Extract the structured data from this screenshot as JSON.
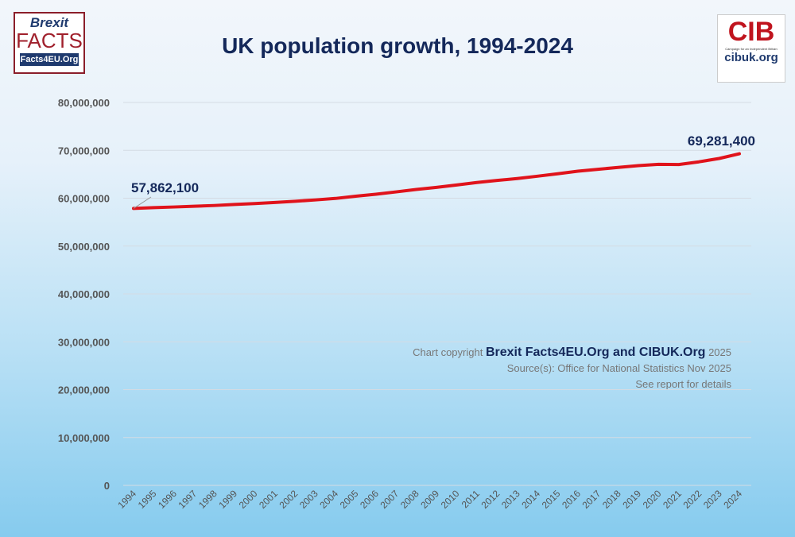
{
  "logos": {
    "left": "Brexit FACTS Facts4EU.Org",
    "right": "CIB Campaign for an Independent Britain cibuk.org"
  },
  "copyright": {
    "prefix": "Chart copyright",
    "brand": "Brexit Facts4EU.Org and CIBUK.Org",
    "year": "2025",
    "source": "Source(s): Office for National Statistics Nov 2025",
    "details": "See report for details"
  },
  "colors": {
    "line": "#e0131b",
    "title": "#14285a"
  },
  "chart_data": {
    "type": "line",
    "title": "UK population growth, 1994-2024",
    "xlabel": "",
    "ylabel": "",
    "ylim": [
      0,
      80000000
    ],
    "yticks": [
      0,
      10000000,
      20000000,
      30000000,
      40000000,
      50000000,
      60000000,
      70000000,
      80000000
    ],
    "ytick_labels": [
      "0",
      "10,000,000",
      "20,000,000",
      "30,000,000",
      "40,000,000",
      "50,000,000",
      "60,000,000",
      "70,000,000",
      "80,000,000"
    ],
    "grid": true,
    "x": [
      "1994",
      "1995",
      "1996",
      "1997",
      "1998",
      "1999",
      "2000",
      "2001",
      "2002",
      "2003",
      "2004",
      "2005",
      "2006",
      "2007",
      "2008",
      "2009",
      "2010",
      "2011",
      "2012",
      "2013",
      "2014",
      "2015",
      "2016",
      "2017",
      "2018",
      "2019",
      "2020",
      "2021",
      "2022",
      "2023",
      "2024"
    ],
    "series": [
      {
        "values": [
          57862100,
          58025000,
          58164000,
          58314000,
          58475000,
          58684000,
          58886000,
          59113000,
          59366000,
          59637000,
          59950000,
          60413000,
          60827000,
          61319000,
          61824000,
          62260000,
          62759000,
          63285000,
          63705000,
          64106000,
          64597000,
          65110000,
          65648000,
          66040000,
          66436000,
          66797000,
          67081000,
          67026000,
          67600000,
          68300000,
          69281400
        ]
      }
    ],
    "annotations": [
      {
        "x": "1994",
        "label": "57,862,100"
      },
      {
        "x": "2024",
        "label": "69,281,400"
      }
    ]
  }
}
